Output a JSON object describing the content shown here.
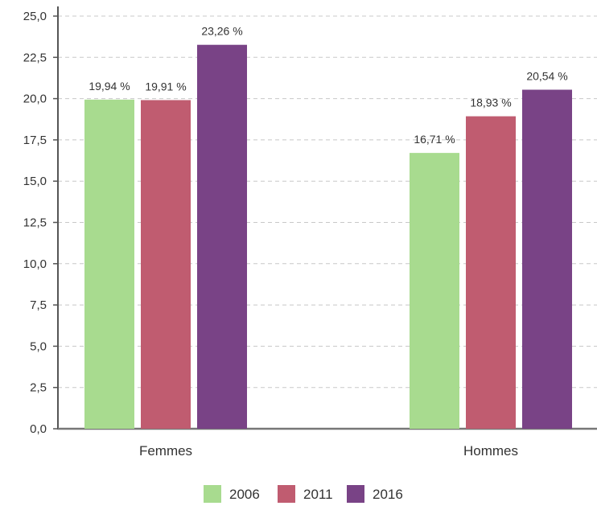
{
  "chart_data": {
    "type": "bar",
    "title": "",
    "xlabel": "",
    "ylabel": "",
    "categories": [
      "Femmes",
      "Hommes"
    ],
    "series": [
      {
        "name": "2006",
        "color": "#a8db8f",
        "values": [
          19.94,
          16.71
        ],
        "labels": [
          "19,94 %",
          "16,71 %"
        ]
      },
      {
        "name": "2011",
        "color": "#c05c70",
        "values": [
          19.91,
          18.93
        ],
        "labels": [
          "19,91 %",
          "18,93 %"
        ]
      },
      {
        "name": "2016",
        "color": "#794386",
        "values": [
          23.26,
          20.54
        ],
        "labels": [
          "23,26 %",
          "20,54 %"
        ]
      }
    ],
    "ylim": [
      0,
      25
    ],
    "yticks": [
      0,
      2.5,
      5,
      7.5,
      10,
      12.5,
      15,
      17.5,
      20,
      22.5,
      25
    ],
    "ytick_labels": [
      "0,0",
      "2,5",
      "5,0",
      "7,5",
      "10,0",
      "12,5",
      "15,0",
      "17,5",
      "20,0",
      "22,5",
      "25,0"
    ],
    "grid": true,
    "legend_position": "bottom-center"
  }
}
